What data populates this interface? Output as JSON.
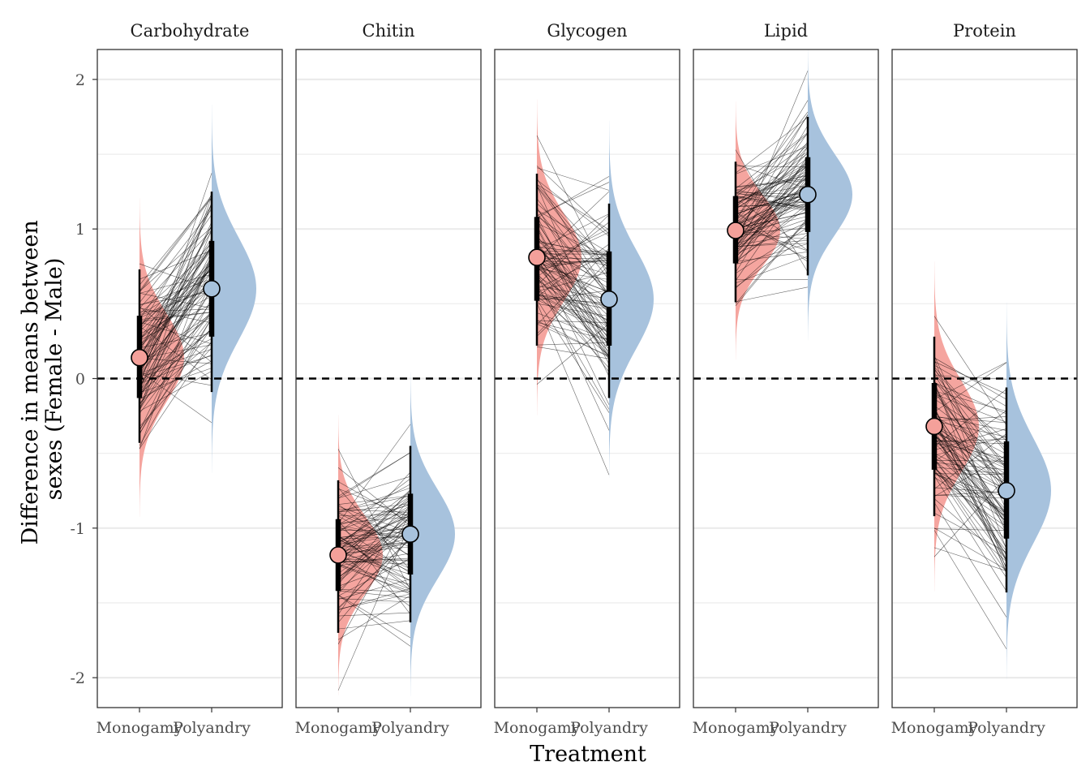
{
  "chart_data": {
    "type": "raincloud-faceted",
    "xlabel": "Treatment",
    "ylabel": "Difference in means between sexes (Female - Male)",
    "ylabel_lines": [
      "Difference in means between",
      "sexes (Female - Male)"
    ],
    "ylim": [
      -2.2,
      2.2
    ],
    "yticks": [
      2,
      1,
      0,
      -1,
      -2
    ],
    "ytick_labels": [
      "2",
      "1",
      "0",
      "-1",
      "-2"
    ],
    "reference_line": 0,
    "grid": true,
    "categories": [
      "Monogamy",
      "Polyandry"
    ],
    "colors": {
      "Monogamy": "#f4a09a",
      "Polyandry": "#a7c2dd"
    },
    "facets": [
      {
        "name": "Carbohydrate",
        "Monogamy": {
          "median": 0.14,
          "q66": [
            -0.13,
            0.42
          ],
          "q95": [
            -0.43,
            0.73
          ]
        },
        "Polyandry": {
          "median": 0.6,
          "q66": [
            0.28,
            0.92
          ],
          "q95": [
            -0.09,
            1.25
          ]
        }
      },
      {
        "name": "Chitin",
        "Monogamy": {
          "median": -1.18,
          "q66": [
            -1.42,
            -0.94
          ],
          "q95": [
            -1.7,
            -0.68
          ]
        },
        "Polyandry": {
          "median": -1.04,
          "q66": [
            -1.31,
            -0.77
          ],
          "q95": [
            -1.63,
            -0.45
          ]
        }
      },
      {
        "name": "Glycogen",
        "Monogamy": {
          "median": 0.81,
          "q66": [
            0.52,
            1.08
          ],
          "q95": [
            0.22,
            1.37
          ]
        },
        "Polyandry": {
          "median": 0.53,
          "q66": [
            0.22,
            0.85
          ],
          "q95": [
            -0.13,
            1.17
          ]
        }
      },
      {
        "name": "Lipid",
        "Monogamy": {
          "median": 0.99,
          "q66": [
            0.77,
            1.22
          ],
          "q95": [
            0.51,
            1.45
          ]
        },
        "Polyandry": {
          "median": 1.23,
          "q66": [
            0.98,
            1.48
          ],
          "q95": [
            0.69,
            1.75
          ]
        }
      },
      {
        "name": "Protein",
        "Monogamy": {
          "median": -0.32,
          "q66": [
            -0.61,
            -0.03
          ],
          "q95": [
            -0.92,
            0.28
          ]
        },
        "Polyandry": {
          "median": -0.75,
          "q66": [
            -1.07,
            -0.42
          ],
          "q95": [
            -1.43,
            -0.06
          ]
        }
      }
    ]
  }
}
